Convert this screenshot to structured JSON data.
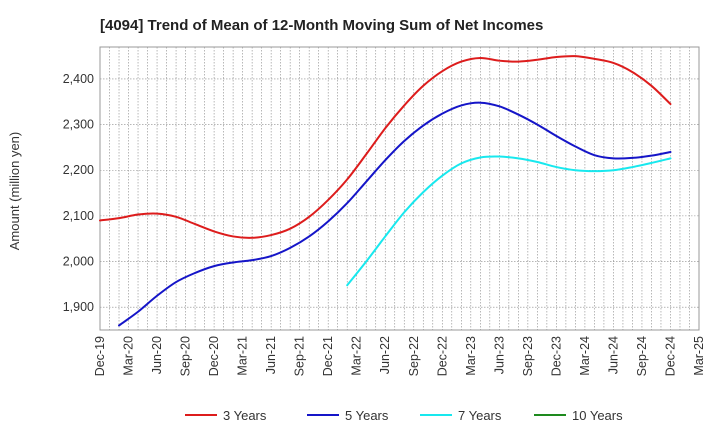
{
  "chart_data": {
    "type": "line",
    "title": "[4094]  Trend of Mean of 12-Month Moving Sum of Net Incomes",
    "ylabel": "Amount (million yen)",
    "xlabel": "",
    "ylim": [
      1850,
      2470
    ],
    "yticks": [
      1900,
      2000,
      2100,
      2200,
      2300,
      2400
    ],
    "ytick_labels": [
      "1,900",
      "2,000",
      "2,100",
      "2,200",
      "2,300",
      "2,400"
    ],
    "xlim": [
      "2019-12",
      "2025-03"
    ],
    "xtick_labels": [
      "Dec-19",
      "Mar-20",
      "Jun-20",
      "Sep-20",
      "Dec-20",
      "Mar-21",
      "Jun-21",
      "Sep-21",
      "Dec-21",
      "Mar-22",
      "Jun-22",
      "Sep-22",
      "Dec-22",
      "Mar-23",
      "Jun-23",
      "Sep-23",
      "Dec-23",
      "Mar-24",
      "Jun-24",
      "Sep-24",
      "Dec-24",
      "Mar-25"
    ],
    "grid": true,
    "legend_position": "bottom",
    "series": [
      {
        "name": "3 Years",
        "color": "#dd1c1c",
        "points": [
          [
            "2019-12",
            2090
          ],
          [
            "2020-02",
            2095
          ],
          [
            "2020-04",
            2103
          ],
          [
            "2020-06",
            2105
          ],
          [
            "2020-08",
            2098
          ],
          [
            "2020-10",
            2082
          ],
          [
            "2020-12",
            2066
          ],
          [
            "2021-02",
            2055
          ],
          [
            "2021-04",
            2052
          ],
          [
            "2021-06",
            2058
          ],
          [
            "2021-08",
            2072
          ],
          [
            "2021-10",
            2098
          ],
          [
            "2021-12",
            2135
          ],
          [
            "2022-02",
            2180
          ],
          [
            "2022-04",
            2235
          ],
          [
            "2022-06",
            2292
          ],
          [
            "2022-08",
            2342
          ],
          [
            "2022-10",
            2385
          ],
          [
            "2022-12",
            2417
          ],
          [
            "2023-02",
            2438
          ],
          [
            "2023-04",
            2446
          ],
          [
            "2023-06",
            2440
          ],
          [
            "2023-08",
            2438
          ],
          [
            "2023-10",
            2442
          ],
          [
            "2023-12",
            2448
          ],
          [
            "2024-02",
            2450
          ],
          [
            "2024-04",
            2444
          ],
          [
            "2024-06",
            2435
          ],
          [
            "2024-08",
            2415
          ],
          [
            "2024-10",
            2385
          ],
          [
            "2024-12",
            2345
          ]
        ]
      },
      {
        "name": "5 Years",
        "color": "#1515c8",
        "points": [
          [
            "2020-02",
            1860
          ],
          [
            "2020-04",
            1890
          ],
          [
            "2020-06",
            1925
          ],
          [
            "2020-08",
            1955
          ],
          [
            "2020-10",
            1975
          ],
          [
            "2020-12",
            1990
          ],
          [
            "2021-02",
            1998
          ],
          [
            "2021-04",
            2003
          ],
          [
            "2021-06",
            2012
          ],
          [
            "2021-08",
            2030
          ],
          [
            "2021-10",
            2055
          ],
          [
            "2021-12",
            2088
          ],
          [
            "2022-02",
            2128
          ],
          [
            "2022-04",
            2175
          ],
          [
            "2022-06",
            2222
          ],
          [
            "2022-08",
            2264
          ],
          [
            "2022-10",
            2298
          ],
          [
            "2022-12",
            2324
          ],
          [
            "2023-02",
            2342
          ],
          [
            "2023-04",
            2348
          ],
          [
            "2023-06",
            2340
          ],
          [
            "2023-08",
            2322
          ],
          [
            "2023-10",
            2300
          ],
          [
            "2023-12",
            2275
          ],
          [
            "2024-02",
            2252
          ],
          [
            "2024-04",
            2233
          ],
          [
            "2024-06",
            2226
          ],
          [
            "2024-08",
            2227
          ],
          [
            "2024-10",
            2232
          ],
          [
            "2024-12",
            2240
          ]
        ]
      },
      {
        "name": "7 Years",
        "color": "#18e8ee",
        "points": [
          [
            "2022-02",
            1948
          ],
          [
            "2022-04",
            2000
          ],
          [
            "2022-06",
            2055
          ],
          [
            "2022-08",
            2108
          ],
          [
            "2022-10",
            2152
          ],
          [
            "2022-12",
            2188
          ],
          [
            "2023-02",
            2215
          ],
          [
            "2023-04",
            2228
          ],
          [
            "2023-06",
            2230
          ],
          [
            "2023-08",
            2226
          ],
          [
            "2023-10",
            2218
          ],
          [
            "2023-12",
            2207
          ],
          [
            "2024-02",
            2200
          ],
          [
            "2024-04",
            2198
          ],
          [
            "2024-06",
            2200
          ],
          [
            "2024-08",
            2207
          ],
          [
            "2024-10",
            2216
          ],
          [
            "2024-12",
            2226
          ]
        ]
      },
      {
        "name": "10 Years",
        "color": "#1e8a1e",
        "points": []
      }
    ]
  }
}
